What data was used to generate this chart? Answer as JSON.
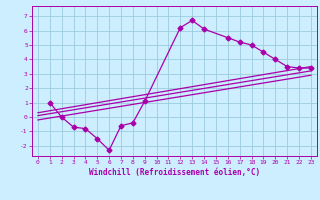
{
  "xlabel": "Windchill (Refroidissement éolien,°C)",
  "xlim": [
    -0.5,
    23.5
  ],
  "ylim": [
    -2.7,
    7.7
  ],
  "xticks": [
    0,
    1,
    2,
    3,
    4,
    5,
    6,
    7,
    8,
    9,
    10,
    11,
    12,
    13,
    14,
    15,
    16,
    17,
    18,
    19,
    20,
    21,
    22,
    23
  ],
  "yticks": [
    -2,
    -1,
    0,
    1,
    2,
    3,
    4,
    5,
    6,
    7
  ],
  "bg_color": "#cceeff",
  "grid_color": "#99ccdd",
  "line_color": "#aa00aa",
  "line1_x": [
    1,
    2,
    3,
    4,
    5,
    6,
    7,
    8,
    9,
    12,
    13,
    14,
    16,
    17,
    18,
    19,
    20,
    21,
    22,
    23
  ],
  "line1_y": [
    1.0,
    0.0,
    -0.7,
    -0.8,
    -1.5,
    -2.3,
    -0.6,
    -0.4,
    1.1,
    6.2,
    6.7,
    6.1,
    5.5,
    5.2,
    5.0,
    4.5,
    4.0,
    3.5,
    3.4,
    3.4
  ],
  "line2_x": [
    0,
    23
  ],
  "line2_y": [
    0.3,
    3.5
  ],
  "line3_x": [
    0,
    23
  ],
  "line3_y": [
    0.1,
    3.2
  ],
  "line4_x": [
    0,
    23
  ],
  "line4_y": [
    -0.2,
    2.9
  ],
  "marker": "D",
  "markersize": 2.5,
  "linewidth": 0.9,
  "tick_fontsize": 4.5,
  "xlabel_fontsize": 5.5
}
